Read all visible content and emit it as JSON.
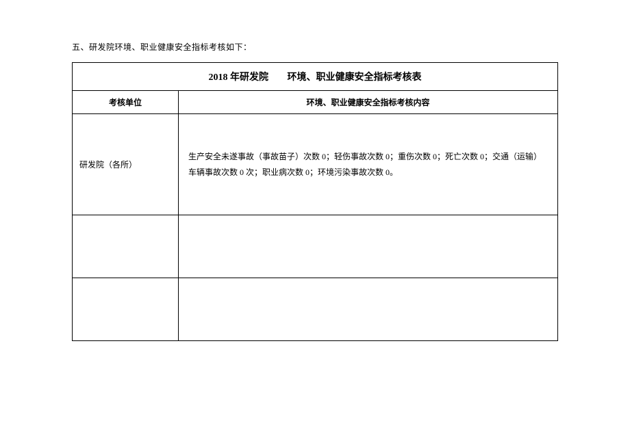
{
  "intro": "五、研发院环境、职业健康安全指标考核如下：",
  "table": {
    "title_main": "2018 年研发院",
    "title_sub": "环境、职业健康安全指标考核表",
    "headers": {
      "unit": "考核单位",
      "content": "环境、职业健康安全指标考核内容"
    },
    "rows": [
      {
        "unit": "研发院（各所）",
        "content": "生产安全未遂事故（事故苗子）次数 0；轻伤事故次数 0；重伤次数 0；死亡次数 0；交通（运输）车辆事故次数 0 次；职业病次数 0；环境污染事故次数 0。"
      },
      {
        "unit": "",
        "content": ""
      },
      {
        "unit": "",
        "content": ""
      }
    ]
  },
  "styles": {
    "page_bg": "#ffffff",
    "text_color": "#000000",
    "border_color": "#000000",
    "body_fontsize": 12,
    "title_fontsize": 14
  }
}
